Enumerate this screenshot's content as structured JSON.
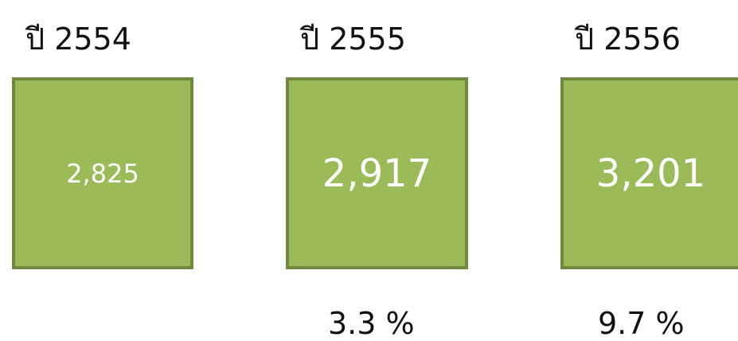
{
  "items": [
    {
      "title": "ปี 2554",
      "value": "2,825"
    },
    {
      "title": "ปี 2555",
      "value": "2,917",
      "change": "3.3 %"
    },
    {
      "title": "ปี 2556",
      "value": "3,201",
      "change": "9.7 %"
    }
  ]
}
